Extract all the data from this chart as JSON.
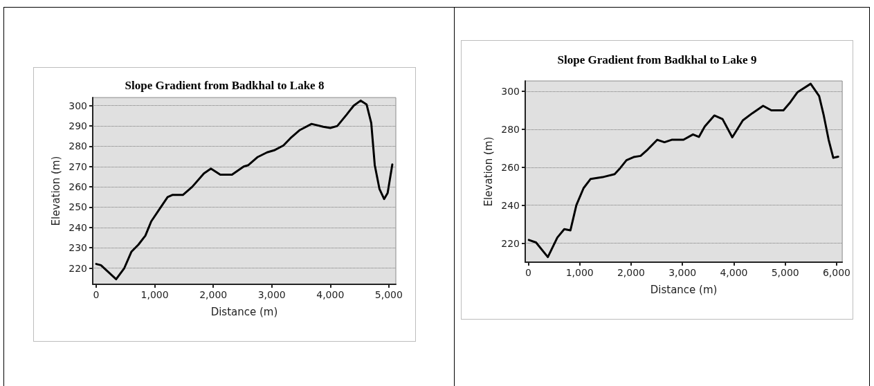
{
  "chart_data": [
    {
      "type": "line",
      "title": "Slope Gradient from Badkhal to Lake 8",
      "xlabel": "Distance (m)",
      "ylabel": "Elevation (m)",
      "grid": "y",
      "marker": "none",
      "line_style": "solid",
      "xlim": [
        -60,
        5120
      ],
      "xticks": [
        0,
        {
          "value": 1000,
          "label": "1,000"
        },
        {
          "value": 2000,
          "label": "2,000"
        },
        {
          "value": 3000,
          "label": "3,000"
        },
        {
          "value": 4000,
          "label": "4,000"
        },
        {
          "value": 5000,
          "label": "5,000"
        }
      ],
      "ylim": [
        212,
        304
      ],
      "yticks": [
        220,
        230,
        240,
        250,
        260,
        270,
        280,
        290,
        300
      ],
      "series": [
        {
          "color": "#000000",
          "x": [
            0,
            80,
            340,
            480,
            600,
            720,
            840,
            940,
            1080,
            1220,
            1300,
            1480,
            1640,
            1840,
            1960,
            2120,
            2320,
            2520,
            2600,
            2760,
            2920,
            3040,
            3200,
            3320,
            3480,
            3680,
            3880,
            4000,
            4120,
            4280,
            4400,
            4520,
            4620,
            4700,
            4760,
            4840,
            4920,
            4980,
            5060
          ],
          "values": [
            222,
            221.4,
            214.5,
            220,
            228,
            231.5,
            236,
            243,
            249,
            255,
            256,
            256,
            260,
            266.6,
            269,
            266,
            266,
            270,
            270.7,
            274.7,
            277,
            278,
            280.4,
            284,
            288,
            291,
            289.6,
            289,
            290,
            295.6,
            300,
            302.5,
            300.6,
            291.4,
            270.7,
            259,
            254,
            257,
            271
          ]
        }
      ]
    },
    {
      "type": "line",
      "title": "Slope Gradient from Badkhal to Lake 9",
      "xlabel": "Distance (m)",
      "ylabel": "Elevation (m)",
      "grid": "y",
      "marker": "none",
      "line_style": "solid",
      "xlim": [
        -60,
        6110
      ],
      "xticks": [
        0,
        {
          "value": 1000,
          "label": "1,000"
        },
        {
          "value": 2000,
          "label": "2,000"
        },
        {
          "value": 3000,
          "label": "3,000"
        },
        {
          "value": 4000,
          "label": "4,000"
        },
        {
          "value": 5000,
          "label": "5,000"
        },
        {
          "value": 6000,
          "label": "6,000"
        }
      ],
      "ylim": [
        210,
        305.5
      ],
      "yticks": [
        220,
        240,
        260,
        280,
        300
      ],
      "series": [
        {
          "color": "#000000",
          "x": [
            10,
            150,
            380,
            565,
            700,
            820,
            935,
            1075,
            1210,
            1445,
            1680,
            1770,
            1910,
            2050,
            2185,
            2325,
            2510,
            2650,
            2790,
            3020,
            3205,
            3320,
            3435,
            3620,
            3780,
            3970,
            4175,
            4360,
            4570,
            4730,
            4965,
            5100,
            5240,
            5495,
            5660,
            5750,
            5845,
            5935,
            6030
          ],
          "values": [
            221.7,
            220.4,
            212.7,
            223,
            227.4,
            226.8,
            240,
            249,
            253.8,
            254.8,
            256.4,
            259,
            263.7,
            265.4,
            266,
            269.4,
            274.5,
            273.2,
            274.5,
            274.5,
            277.3,
            276,
            281.5,
            287.3,
            285.4,
            275.8,
            284.7,
            288.5,
            292.4,
            290,
            290,
            294.3,
            299.6,
            304,
            297.5,
            287.3,
            274.5,
            265,
            265.6
          ]
        }
      ]
    }
  ]
}
